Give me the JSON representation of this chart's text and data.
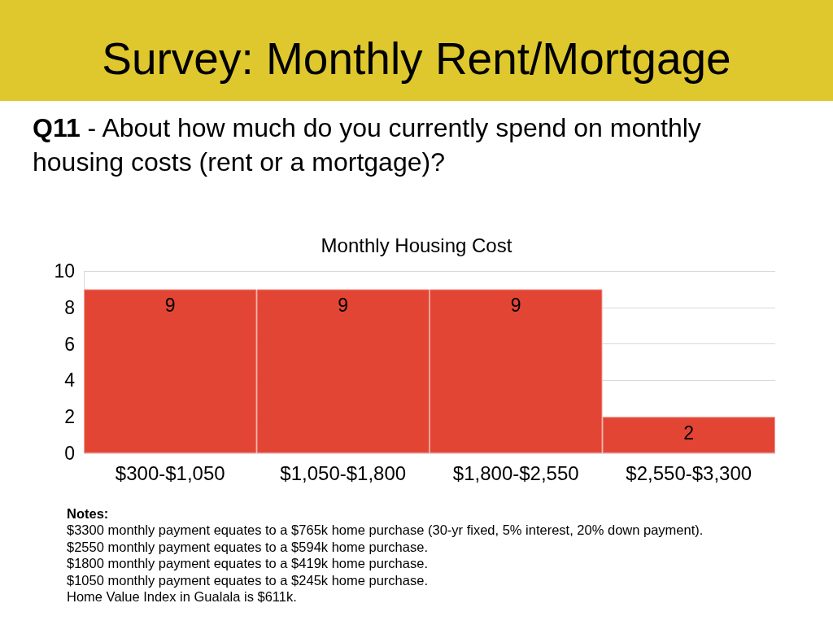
{
  "chart_data": {
    "type": "bar",
    "title": "Survey: Monthly Rent/Mortgage",
    "subtitle": "Q11 - About how much do you currently spend on monthly housing costs (rent or a mortgage)?",
    "categories": [
      "$300-$1,050",
      "$1,050-$1,800",
      "$1,800-$2,550",
      "$2,550-$3,300"
    ],
    "values": [
      9,
      9,
      9,
      2
    ],
    "color": "#e34535",
    "ylim": [
      0,
      10
    ],
    "yticks": [
      0,
      2,
      4,
      6,
      8,
      10
    ],
    "grid": "y",
    "data_labels": true,
    "annotations": [
      "Monthly Housing Cost",
      "Notes:",
      "$3300 monthly payment equates to a $765k home purchase (30-yr fixed, 5% interest, 20% down payment).",
      "$2550 monthly payment equates to a $594k home purchase.",
      "$1800 monthly payment equates to a $419k home purchase.",
      "$1050 monthly payment equates to a $245k home purchase.",
      "Home Value Index in Gualala is $611k."
    ]
  }
}
